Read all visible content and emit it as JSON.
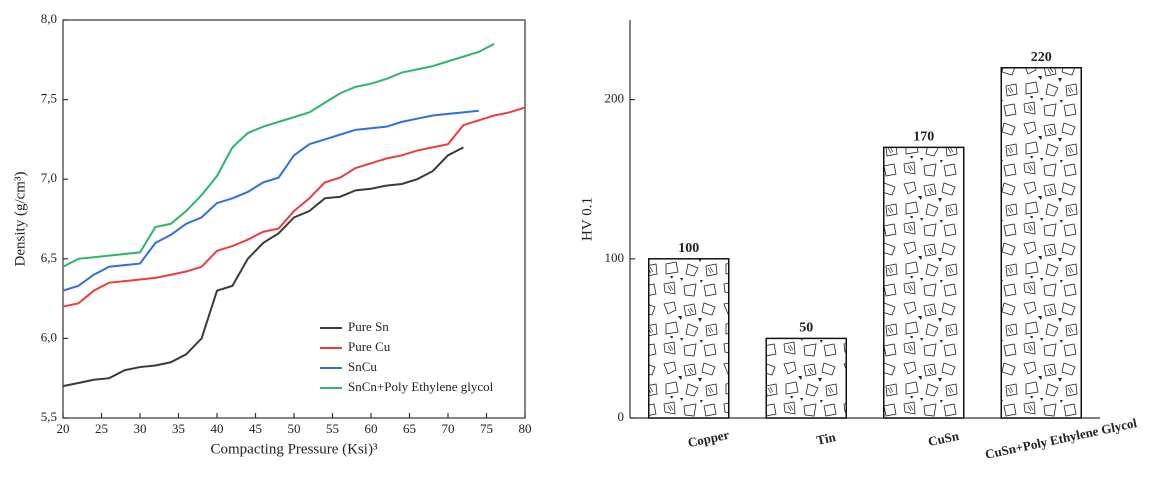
{
  "chart_data": [
    {
      "type": "line",
      "xlabel": "Compacting Pressure (Ksi)³",
      "ylabel": "Density (g/cm³)",
      "x": [
        20,
        22,
        24,
        26,
        28,
        30,
        32,
        34,
        36,
        38,
        40,
        42,
        44,
        46,
        48,
        50,
        52,
        54,
        56,
        58,
        60,
        62,
        64,
        66,
        68,
        70,
        72,
        74,
        76,
        78,
        80
      ],
      "series": [
        {
          "name": "Pure Sn",
          "color": "#3a3a3a",
          "values": [
            5.7,
            5.72,
            5.74,
            5.75,
            5.8,
            5.82,
            5.83,
            5.85,
            5.9,
            6.0,
            6.3,
            6.33,
            6.5,
            6.6,
            6.66,
            6.76,
            6.8,
            6.88,
            6.89,
            6.93,
            6.94,
            6.96,
            6.97,
            7.0,
            7.05,
            7.15,
            7.2,
            null,
            null,
            null,
            null
          ]
        },
        {
          "name": "Pure Cu",
          "color": "#ee3b3b",
          "values": [
            6.2,
            6.22,
            6.3,
            6.35,
            6.36,
            6.37,
            6.38,
            6.4,
            6.42,
            6.45,
            6.55,
            6.58,
            6.62,
            6.67,
            6.69,
            6.8,
            6.88,
            6.98,
            7.01,
            7.07,
            7.1,
            7.13,
            7.15,
            7.18,
            7.2,
            7.22,
            7.34,
            7.37,
            7.4,
            7.42,
            7.45
          ]
        },
        {
          "name": "SnCu",
          "color": "#2f6fe0",
          "values": [
            6.3,
            6.33,
            6.4,
            6.45,
            6.46,
            6.47,
            6.6,
            6.65,
            6.72,
            6.76,
            6.85,
            6.88,
            6.92,
            6.98,
            7.01,
            7.15,
            7.22,
            7.25,
            7.28,
            7.31,
            7.32,
            7.33,
            7.36,
            7.38,
            7.4,
            7.41,
            7.42,
            7.43,
            null,
            null,
            null
          ]
        },
        {
          "name": "SnCn+Poly Ethylene glycol",
          "color": "#2fb56a",
          "values": [
            6.45,
            6.5,
            6.51,
            6.52,
            6.53,
            6.54,
            6.7,
            6.72,
            6.8,
            6.9,
            7.02,
            7.2,
            7.29,
            7.33,
            7.36,
            7.39,
            7.42,
            7.48,
            7.54,
            7.58,
            7.6,
            7.63,
            7.67,
            7.69,
            7.71,
            7.74,
            7.77,
            7.8,
            7.85,
            null,
            null
          ]
        }
      ],
      "xlim": [
        20,
        80
      ],
      "xticks": [
        20,
        25,
        30,
        35,
        40,
        45,
        50,
        55,
        60,
        65,
        70,
        75,
        80
      ],
      "ylim": [
        5.5,
        8.0
      ],
      "yticks": [
        {
          "value": 5.5,
          "label": "5,5"
        },
        {
          "value": 6.0,
          "label": "6,0"
        },
        {
          "value": 6.5,
          "label": "6,5"
        },
        {
          "value": 7.0,
          "label": "7,0"
        },
        {
          "value": 7.5,
          "label": "7,5"
        },
        {
          "value": 8.0,
          "label": "8,0"
        }
      ],
      "legend": "bottom-right"
    },
    {
      "type": "bar",
      "ylabel": "HV 0.1",
      "categories": [
        "Copper",
        "Tin",
        "CuSn",
        "CuSn+Poly Ethylene Glycol"
      ],
      "values": [
        100,
        50,
        170,
        220
      ],
      "ylim": [
        0,
        250
      ],
      "yticks": [
        0,
        100,
        200
      ]
    }
  ]
}
